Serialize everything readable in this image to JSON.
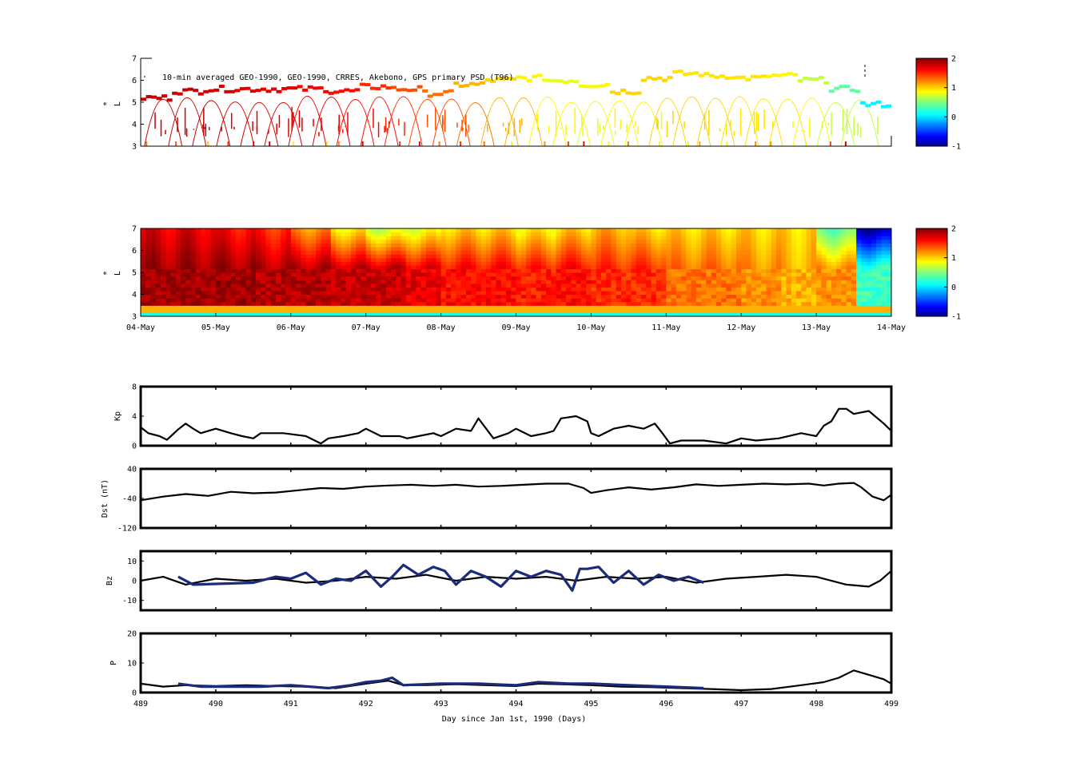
{
  "figure": {
    "panel1_title": "10-min averaged GEO-1990, GEO-1990, CRRES, Akebono, GPS  primary PSD (T96)"
  },
  "chart_data": [
    {
      "id": "psd-observed",
      "type": "heatmap",
      "ylabel": "L",
      "ylabel_star": "*",
      "yticks": [
        "3",
        "4",
        "5",
        "6",
        "7"
      ],
      "ylim": [
        3,
        7
      ],
      "xlim": [
        489,
        499
      ],
      "colorbar": {
        "ticks": [
          "-1",
          "0",
          "1",
          "2"
        ],
        "range": [
          -1,
          2
        ],
        "colormap": "jet"
      },
      "tracks": [
        {
          "name": "GEO",
          "L": [
            5.2,
            5.5,
            5.6,
            5.6,
            5.6,
            5.6,
            5.5,
            5.7,
            5.6,
            5.4,
            5.8,
            6.0,
            6.1,
            6.0,
            5.8,
            5.5,
            6.1,
            6.3,
            6.2,
            6.1,
            6.2,
            6.0,
            5.6,
            4.9
          ],
          "value": [
            1.8,
            1.8,
            1.75,
            1.7,
            1.7,
            1.65,
            1.6,
            1.5,
            1.4,
            1.3,
            1.1,
            1.0,
            0.9,
            0.8,
            0.9,
            1.0,
            1.0,
            0.95,
            0.95,
            0.95,
            0.9,
            0.7,
            0.4,
            0.1
          ]
        }
      ],
      "gps_passes": {
        "start_day": 489.05,
        "spacing_days": 0.32,
        "count": 30,
        "L_min": 3.0,
        "L_max": 6.1
      }
    },
    {
      "id": "psd-reanalysis",
      "type": "heatmap",
      "ylabel": "L",
      "ylabel_star": "*",
      "yticks": [
        "3",
        "4",
        "5",
        "6",
        "7"
      ],
      "ylim": [
        3,
        7
      ],
      "xlim": [
        489,
        499
      ],
      "xticks": [
        "04-May",
        "05-May",
        "06-May",
        "07-May",
        "08-May",
        "09-May",
        "10-May",
        "11-May",
        "12-May",
        "13-May",
        "14-May"
      ],
      "colorbar": {
        "ticks": [
          "-1",
          "0",
          "1",
          "2"
        ],
        "range": [
          -1,
          2
        ],
        "colormap": "jet"
      },
      "outer_level_by_day": [
        1.7,
        1.7,
        1.6,
        1.5,
        1.2,
        0.9,
        0.7,
        0.8,
        1.0,
        1.0,
        0.9,
        1.0,
        1.1,
        1.0,
        1.0,
        1.0,
        1.0,
        1.0,
        0.4,
        -0.9
      ],
      "inner_level_by_day": [
        1.9,
        1.9,
        1.9,
        1.85,
        1.85,
        1.8,
        1.8,
        1.7,
        1.6,
        1.6,
        1.55,
        1.6,
        1.5,
        1.5,
        1.3,
        1.3,
        1.2,
        1.1,
        1.2,
        0.3
      ]
    },
    {
      "id": "kp",
      "type": "line",
      "ylabel": "Kp",
      "ylim": [
        0,
        8
      ],
      "yticks": [
        "0",
        "4",
        "8"
      ],
      "xlim": [
        489,
        499
      ],
      "series": [
        {
          "color": "#000000",
          "x": [
            489.0,
            489.1,
            489.25,
            489.35,
            489.5,
            489.6,
            489.7,
            489.8,
            490.0,
            490.2,
            490.35,
            490.5,
            490.6,
            490.75,
            490.9,
            491.2,
            491.4,
            491.5,
            491.7,
            491.9,
            492.0,
            492.2,
            492.45,
            492.55,
            492.7,
            492.9,
            493.0,
            493.2,
            493.4,
            493.5,
            493.7,
            493.9,
            494.0,
            494.2,
            494.4,
            494.5,
            494.6,
            494.8,
            494.95,
            495.0,
            495.1,
            495.3,
            495.5,
            495.7,
            495.85,
            495.95,
            496.05,
            496.2,
            496.5,
            496.8,
            497.0,
            497.2,
            497.5,
            497.8,
            498.0,
            498.1,
            498.2,
            498.3,
            498.4,
            498.5,
            498.7,
            498.9,
            499.0
          ],
          "y": [
            2.5,
            1.7,
            1.3,
            0.8,
            2.2,
            3.0,
            2.3,
            1.7,
            2.3,
            1.7,
            1.3,
            1.0,
            1.7,
            1.7,
            1.7,
            1.3,
            0.3,
            1.0,
            1.3,
            1.7,
            2.3,
            1.3,
            1.3,
            1.0,
            1.3,
            1.7,
            1.3,
            2.3,
            2.0,
            3.7,
            1.0,
            1.7,
            2.3,
            1.3,
            1.7,
            2.0,
            3.7,
            4.0,
            3.3,
            1.7,
            1.3,
            2.3,
            2.7,
            2.3,
            3.0,
            1.7,
            0.3,
            0.7,
            0.7,
            0.3,
            1.0,
            0.7,
            1.0,
            1.7,
            1.3,
            2.7,
            3.3,
            5.0,
            5.0,
            4.3,
            4.7,
            3.0,
            2.0
          ]
        }
      ]
    },
    {
      "id": "dst",
      "type": "line",
      "ylabel": "Dst (nT)",
      "ylim": [
        -120,
        40
      ],
      "yticks": [
        "-120",
        "-40",
        "40"
      ],
      "xlim": [
        489,
        499
      ],
      "series": [
        {
          "color": "#000000",
          "x": [
            489.0,
            489.3,
            489.6,
            489.9,
            490.2,
            490.5,
            490.8,
            491.1,
            491.4,
            491.7,
            492.0,
            492.3,
            492.6,
            492.9,
            493.2,
            493.5,
            493.8,
            494.1,
            494.4,
            494.7,
            494.9,
            495.0,
            495.2,
            495.5,
            495.8,
            496.1,
            496.4,
            496.7,
            497.0,
            497.3,
            497.6,
            497.9,
            498.1,
            498.3,
            498.5,
            498.6,
            498.75,
            498.9,
            499.0
          ],
          "y": [
            -45,
            -35,
            -28,
            -33,
            -22,
            -26,
            -24,
            -18,
            -12,
            -14,
            -8,
            -5,
            -3,
            -6,
            -3,
            -8,
            -6,
            -3,
            0,
            0,
            -12,
            -25,
            -18,
            -10,
            -16,
            -10,
            -2,
            -6,
            -3,
            0,
            -2,
            0,
            -5,
            0,
            2,
            -10,
            -35,
            -45,
            -30
          ]
        }
      ]
    },
    {
      "id": "bz",
      "type": "line",
      "ylabel": "Bz",
      "ylim": [
        -15,
        15
      ],
      "yticks": [
        "-10",
        "0",
        "10"
      ],
      "xlim": [
        489,
        499
      ],
      "series": [
        {
          "color": "#000000",
          "x": [
            489.0,
            489.3,
            489.6,
            490.0,
            490.4,
            490.8,
            491.2,
            491.6,
            492.0,
            492.4,
            492.8,
            493.2,
            493.6,
            494.0,
            494.4,
            494.8,
            495.2,
            495.6,
            496.0,
            496.4,
            496.8,
            497.2,
            497.6,
            498.0,
            498.4,
            498.7,
            498.85,
            499.0
          ],
          "y": [
            0,
            2,
            -2,
            1,
            0,
            1,
            -1,
            0,
            2,
            1,
            3,
            0,
            2,
            1,
            2,
            0,
            2,
            1,
            2,
            -1,
            1,
            2,
            3,
            2,
            -2,
            -3,
            0,
            5
          ]
        },
        {
          "color": "#1c2a7a",
          "x": [
            489.5,
            489.7,
            490.5,
            490.8,
            491.0,
            491.2,
            491.4,
            491.6,
            491.8,
            492.0,
            492.2,
            492.35,
            492.5,
            492.7,
            492.9,
            493.05,
            493.2,
            493.4,
            493.6,
            493.8,
            494.0,
            494.2,
            494.4,
            494.6,
            494.75,
            494.85,
            494.95,
            495.1,
            495.3,
            495.5,
            495.7,
            495.9,
            496.1,
            496.3,
            496.5
          ],
          "y": [
            2,
            -2,
            -1,
            2,
            1,
            4,
            -2,
            1,
            0,
            5,
            -3,
            2,
            8,
            3,
            7,
            5,
            -2,
            5,
            2,
            -3,
            5,
            2,
            5,
            3,
            -5,
            6,
            6,
            7,
            -1,
            5,
            -2,
            3,
            0,
            2,
            -1
          ]
        }
      ]
    },
    {
      "id": "p",
      "type": "line",
      "ylabel": "P",
      "ylim": [
        0,
        20
      ],
      "yticks": [
        "0",
        "10",
        "20"
      ],
      "xlim": [
        489,
        499
      ],
      "xticks": [
        "489",
        "490",
        "491",
        "492",
        "493",
        "494",
        "495",
        "496",
        "497",
        "498",
        "499"
      ],
      "xlabel": "Day since Jan 1st, 1990 (Days)",
      "series": [
        {
          "color": "#000000",
          "x": [
            489.0,
            489.3,
            489.6,
            490.0,
            490.4,
            490.8,
            491.2,
            491.6,
            492.0,
            492.3,
            492.5,
            492.8,
            493.2,
            493.6,
            494.0,
            494.3,
            494.6,
            495.0,
            495.4,
            495.8,
            496.2,
            496.6,
            497.0,
            497.4,
            497.8,
            498.1,
            498.3,
            498.5,
            498.7,
            498.9,
            499.0
          ],
          "y": [
            3,
            2,
            2.5,
            2.2,
            2.5,
            2.2,
            2.0,
            1.5,
            3.0,
            4.0,
            2.5,
            2.5,
            2.8,
            2.5,
            2.2,
            3.0,
            2.8,
            2.5,
            2.0,
            1.8,
            1.5,
            1.2,
            0.8,
            1.2,
            2.5,
            3.5,
            5.0,
            7.5,
            6.0,
            4.5,
            3.0
          ]
        },
        {
          "color": "#1c2a7a",
          "x": [
            489.5,
            489.8,
            490.6,
            491.0,
            491.5,
            491.8,
            492.0,
            492.2,
            492.35,
            492.5,
            493.0,
            493.5,
            494.0,
            494.3,
            494.7,
            495.0,
            495.5,
            496.0,
            496.5
          ],
          "y": [
            3,
            2,
            2,
            2.5,
            1.5,
            2.5,
            3.5,
            4.0,
            5.0,
            2.5,
            3.0,
            3.0,
            2.5,
            3.5,
            3.0,
            3.0,
            2.5,
            2.0,
            1.5
          ]
        }
      ]
    }
  ]
}
